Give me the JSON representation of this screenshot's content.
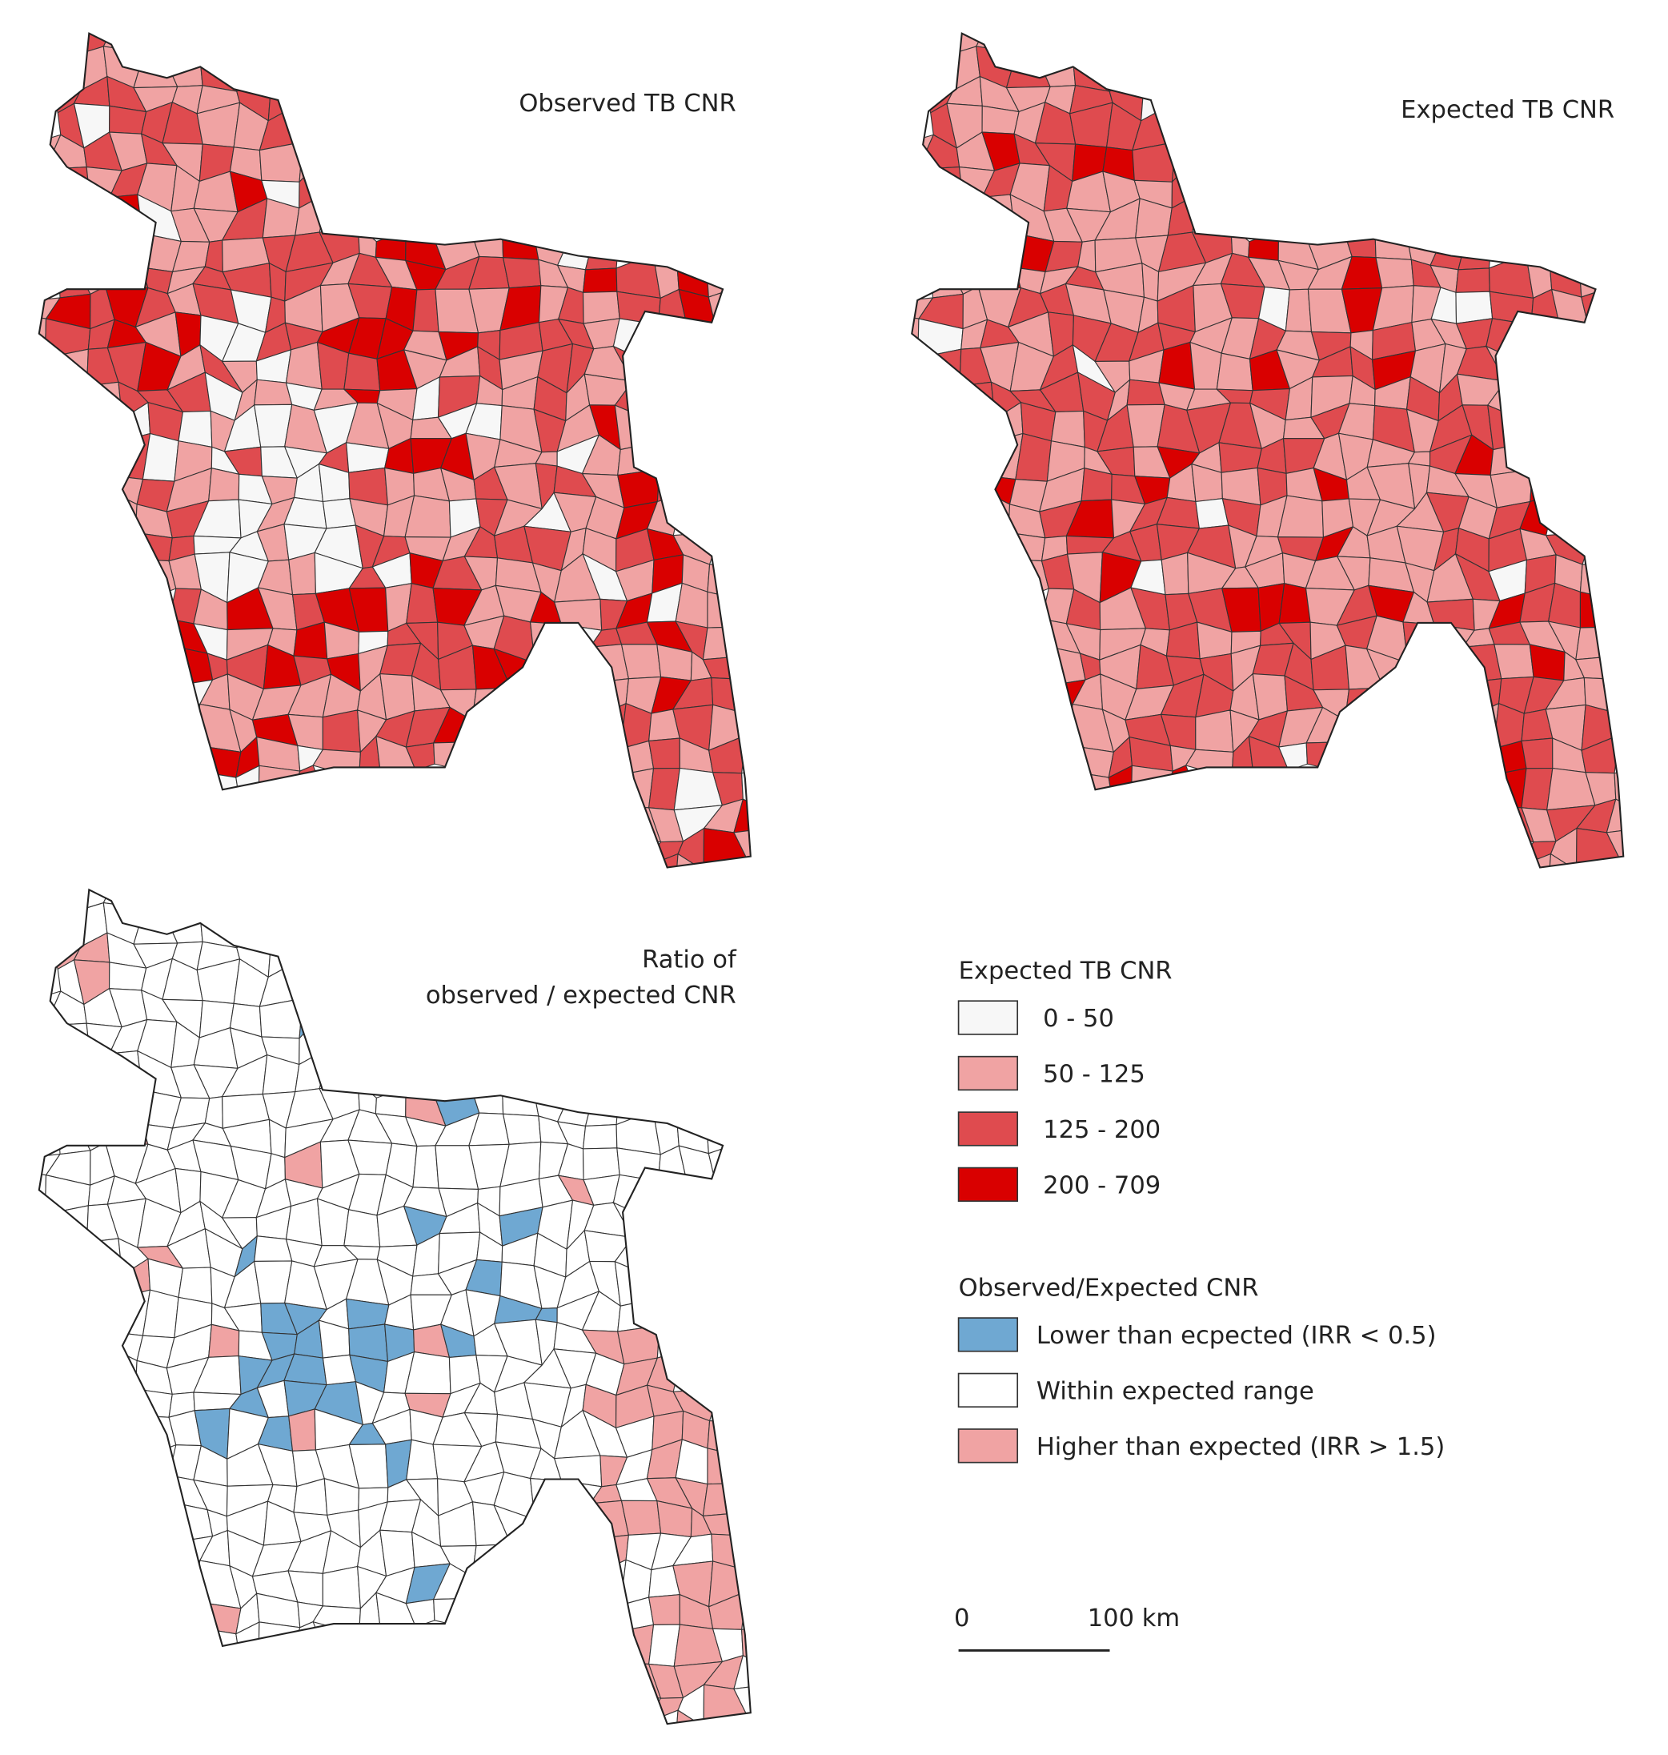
{
  "maps": [
    {
      "title": [
        "Observed TB CNR"
      ]
    },
    {
      "title": [
        "Expected TB CNR"
      ]
    },
    {
      "title": [
        "Ratio of",
        "observed / expected CNR"
      ]
    }
  ],
  "legends": [
    {
      "title": "Expected TB CNR",
      "items": [
        {
          "label": "0 - 50",
          "color": "#f7f7f7"
        },
        {
          "label": "50 - 125",
          "color": "#f0a3a3"
        },
        {
          "label": "125 - 200",
          "color": "#df4b4f"
        },
        {
          "label": "200 - 709",
          "color": "#d90000"
        }
      ]
    },
    {
      "title": "Observed/Expected CNR",
      "items": [
        {
          "label": "Lower than ecpected (IRR < 0.5)",
          "color": "#6fa8d2"
        },
        {
          "label": "Within expected range",
          "color": "#ffffff"
        },
        {
          "label": "Higher than expected (IRR > 1.5)",
          "color": "#f0a3a3"
        }
      ]
    }
  ],
  "scale_bar": {
    "labels": [
      "0",
      "100 km"
    ]
  }
}
